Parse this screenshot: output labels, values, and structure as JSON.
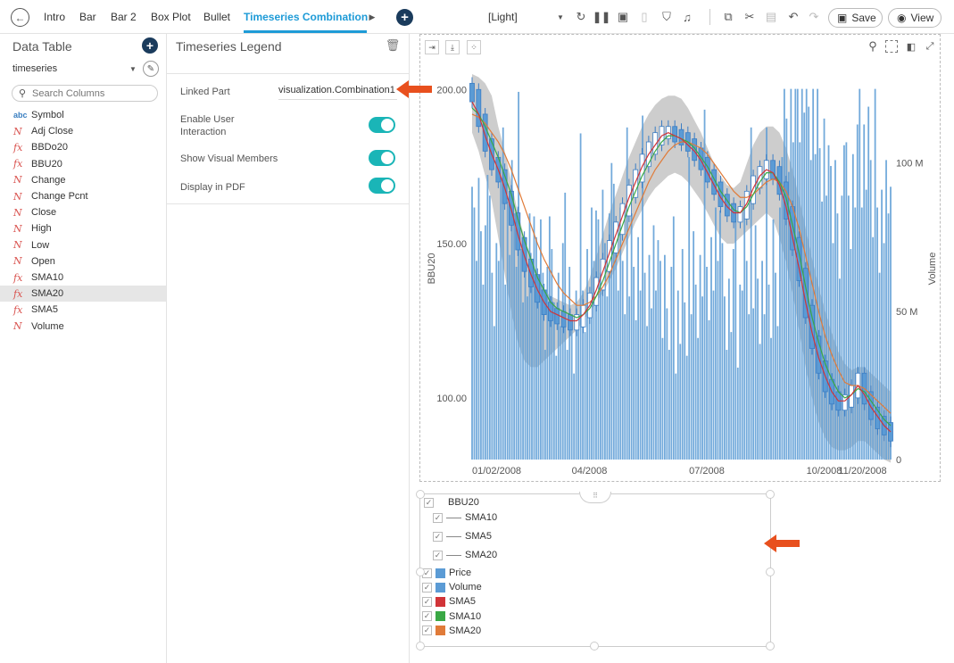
{
  "topbar": {
    "tabs": [
      "Intro",
      "Bar",
      "Bar 2",
      "Box Plot",
      "Bullet",
      "Timeseries Combination"
    ],
    "active_tab": "Timeseries Combination",
    "theme": "[Light]",
    "save_label": "Save",
    "view_label": "View"
  },
  "data_table": {
    "title": "Data Table",
    "source": "timeseries",
    "search_placeholder": "Search Columns",
    "columns": [
      {
        "type": "abc",
        "name": "Symbol"
      },
      {
        "type": "N",
        "name": "Adj Close"
      },
      {
        "type": "fx",
        "name": "BBDo20"
      },
      {
        "type": "fx",
        "name": "BBU20"
      },
      {
        "type": "N",
        "name": "Change"
      },
      {
        "type": "N",
        "name": "Change Pcnt"
      },
      {
        "type": "N",
        "name": "Close"
      },
      {
        "type": "N",
        "name": "High"
      },
      {
        "type": "N",
        "name": "Low"
      },
      {
        "type": "N",
        "name": "Open"
      },
      {
        "type": "fx",
        "name": "SMA10"
      },
      {
        "type": "fx",
        "name": "SMA20"
      },
      {
        "type": "fx",
        "name": "SMA5"
      },
      {
        "type": "N",
        "name": "Volume"
      }
    ],
    "selected_column": "SMA20"
  },
  "settings": {
    "title": "Timeseries Legend",
    "linked_part_label": "Linked Part",
    "linked_part_value": "visualization.Combination1",
    "enable_interaction_label": "Enable User Interaction",
    "show_visual_members_label": "Show Visual Members",
    "display_pdf_label": "Display in PDF",
    "enable_interaction": true,
    "show_visual_members": true,
    "display_pdf": true
  },
  "chart_data": {
    "type": "line",
    "ylabel": "BBU20",
    "y2label": "Volume",
    "ylim": [
      80,
      205
    ],
    "y2lim": [
      0,
      130000000
    ],
    "yticks": [
      "200.00",
      "150.00",
      "100.00"
    ],
    "y2ticks": [
      "100 M",
      "50 M",
      "0"
    ],
    "xticks": [
      "01/02/2008",
      "04/2008",
      "07/2008",
      "10/2008",
      "11/20/2008"
    ],
    "x_months": [
      0,
      3,
      6,
      9,
      10.6
    ],
    "price": [
      198,
      190,
      182,
      176,
      172,
      165,
      158,
      150,
      143,
      138,
      133,
      129,
      127,
      126,
      125,
      124,
      125,
      128,
      132,
      137,
      143,
      149,
      155,
      161,
      167,
      172,
      177,
      181,
      184,
      186,
      186,
      185,
      184,
      182,
      179,
      176,
      172,
      168,
      164,
      161,
      159,
      160,
      165,
      170,
      173,
      175,
      173,
      168,
      160,
      150,
      140,
      128,
      118,
      110,
      104,
      100,
      98,
      99,
      102,
      106,
      100,
      95,
      92,
      90,
      88
    ],
    "sma5": [
      196,
      192,
      185,
      179,
      174,
      168,
      161,
      153,
      146,
      140,
      135,
      131,
      128,
      127,
      126,
      125,
      125,
      127,
      130,
      135,
      141,
      147,
      153,
      159,
      165,
      170,
      175,
      179,
      182,
      185,
      186,
      185,
      184,
      182,
      180,
      177,
      173,
      169,
      165,
      162,
      160,
      160,
      163,
      168,
      172,
      174,
      173,
      169,
      162,
      152,
      142,
      131,
      121,
      113,
      107,
      102,
      99,
      99,
      101,
      104,
      101,
      97,
      94,
      91,
      89
    ],
    "sma10": [
      194,
      192,
      188,
      183,
      178,
      172,
      166,
      158,
      151,
      145,
      139,
      135,
      131,
      129,
      128,
      127,
      126,
      127,
      129,
      133,
      138,
      144,
      150,
      156,
      162,
      167,
      172,
      176,
      180,
      183,
      185,
      185,
      184,
      183,
      181,
      178,
      175,
      171,
      167,
      164,
      161,
      160,
      162,
      166,
      170,
      173,
      173,
      170,
      165,
      156,
      147,
      136,
      126,
      118,
      111,
      106,
      102,
      100,
      101,
      103,
      102,
      99,
      96,
      93,
      91
    ],
    "sma20": [
      192,
      191,
      189,
      186,
      183,
      179,
      174,
      168,
      162,
      156,
      150,
      145,
      141,
      137,
      134,
      132,
      130,
      130,
      131,
      133,
      136,
      140,
      145,
      150,
      155,
      160,
      165,
      170,
      174,
      177,
      180,
      182,
      183,
      183,
      182,
      181,
      179,
      176,
      173,
      170,
      167,
      165,
      165,
      166,
      168,
      170,
      171,
      170,
      167,
      162,
      155,
      146,
      137,
      128,
      120,
      114,
      109,
      105,
      104,
      104,
      103,
      101,
      99,
      97,
      95
    ],
    "band_upper": [
      205,
      204,
      202,
      198,
      188,
      180,
      170,
      160,
      152,
      145,
      140,
      135,
      133,
      132,
      131,
      130,
      131,
      134,
      139,
      146,
      153,
      160,
      166,
      172,
      178,
      183,
      188,
      192,
      195,
      197,
      198,
      198,
      197,
      194,
      190,
      186,
      181,
      176,
      172,
      169,
      168,
      170,
      176,
      182,
      186,
      188,
      188,
      186,
      181,
      174,
      165,
      155,
      145,
      136,
      128,
      121,
      115,
      111,
      109,
      110,
      110,
      108,
      106,
      104,
      102
    ],
    "band_lower": [
      186,
      180,
      172,
      164,
      152,
      140,
      128,
      118,
      112,
      110,
      110,
      112,
      114,
      116,
      118,
      120,
      122,
      125,
      128,
      131,
      134,
      138,
      142,
      147,
      152,
      157,
      161,
      165,
      168,
      170,
      172,
      173,
      172,
      170,
      167,
      164,
      160,
      156,
      152,
      150,
      150,
      152,
      154,
      156,
      158,
      160,
      158,
      152,
      144,
      134,
      122,
      110,
      100,
      92,
      87,
      84,
      83,
      83,
      84,
      86,
      86,
      84,
      82,
      80,
      79
    ],
    "volume_series": "Volume",
    "series": [
      {
        "name": "Price",
        "color": "#5b9bd5"
      },
      {
        "name": "Volume",
        "color": "#5b9bd5"
      },
      {
        "name": "SMA5",
        "color": "#d13438"
      },
      {
        "name": "SMA10",
        "color": "#3aa845"
      },
      {
        "name": "SMA20",
        "color": "#e07b39"
      }
    ]
  },
  "legend": {
    "group_label": "BBU20",
    "line_items": [
      "SMA10",
      "SMA5",
      "SMA20"
    ],
    "items": [
      {
        "label": "Price",
        "color": "#5b9bd5"
      },
      {
        "label": "Volume",
        "color": "#5b9bd5"
      },
      {
        "label": "SMA5",
        "color": "#d13438"
      },
      {
        "label": "SMA10",
        "color": "#3aa845"
      },
      {
        "label": "SMA20",
        "color": "#e07b39"
      }
    ]
  },
  "colors": {
    "accent": "#1e9bd7",
    "toggle": "#1ab5b7",
    "arrow": "#e8501e",
    "band": "#c4c4c4"
  }
}
